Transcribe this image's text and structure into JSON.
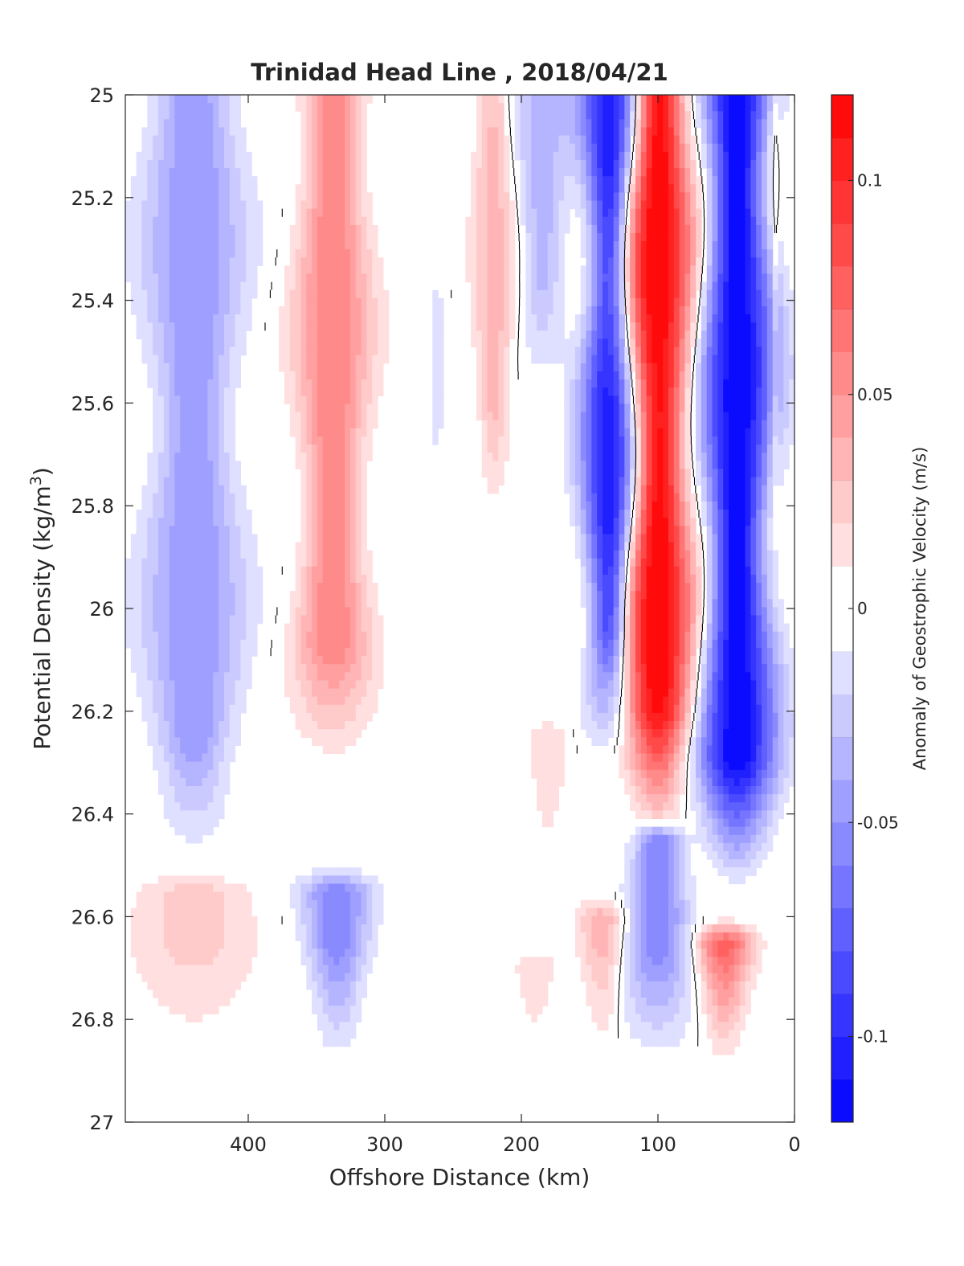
{
  "chart_data": {
    "type": "heatmap",
    "title": "Trinidad Head Line , 2018/04/21",
    "xlabel": "Offshore Distance (km)",
    "ylabel": "Potential Density (kg/m",
    "ylabel_sup": "3",
    "ylabel_close": ")",
    "colorbar_label": "Anomaly of Geostrophic Velocity (m/s)",
    "xlim": [
      490,
      0
    ],
    "ylim": [
      25,
      27
    ],
    "x_reversed": true,
    "y_reversed": true,
    "x_ticks": [
      400,
      300,
      200,
      100,
      0
    ],
    "y_ticks": [
      "25",
      "25.2",
      "25.4",
      "25.6",
      "25.8",
      "26",
      "26.2",
      "26.4",
      "26.6",
      "26.8",
      "27"
    ],
    "y_tick_values": [
      25,
      25.2,
      25.4,
      25.6,
      25.8,
      26,
      26.2,
      26.4,
      26.6,
      26.8,
      27
    ],
    "colorbar_ticks": [
      "-0.1",
      "-0.05",
      "0",
      "0.05",
      "0.1"
    ],
    "colorbar_tick_values": [
      -0.1,
      -0.05,
      0,
      0.05,
      0.1
    ],
    "clim": [
      -0.12,
      0.12
    ],
    "color_levels": 24,
    "colormap": {
      "negative": "#0000ff",
      "zero": "#ffffff",
      "positive": "#ff0000"
    },
    "contour_level_drawn": 0,
    "data_bottom_density": 26.9,
    "jets": [
      {
        "x": 440,
        "peak": -0.05,
        "y_top": 25.0,
        "y_bot": 26.5,
        "half_width_km": 32
      },
      {
        "x": 338,
        "peak": 0.06,
        "y_top": 25.0,
        "y_bot": 26.32,
        "half_width_km": 24
      },
      {
        "x": 335,
        "peak": -0.06,
        "y_top": 26.55,
        "y_bot": 26.9,
        "half_width_km": 22
      },
      {
        "x": 440,
        "peak": 0.025,
        "y_top": 26.55,
        "y_bot": 26.9,
        "half_width_km": 40
      },
      {
        "x": 262,
        "peak": -0.015,
        "y_top": 25.4,
        "y_bot": 25.85,
        "half_width_km": 6
      },
      {
        "x": 220,
        "peak": 0.035,
        "y_top": 25.0,
        "y_bot": 25.85,
        "half_width_km": 14
      },
      {
        "x": 185,
        "peak": -0.035,
        "y_top": 25.0,
        "y_bot": 25.6,
        "half_width_km": 20
      },
      {
        "x": 135,
        "peak": -0.11,
        "y_top": 25.0,
        "y_bot": 26.3,
        "half_width_km": 18
      },
      {
        "x": 180,
        "peak": 0.02,
        "y_top": 26.25,
        "y_bot": 26.55,
        "half_width_km": 12
      },
      {
        "x": 190,
        "peak": 0.025,
        "y_top": 26.7,
        "y_bot": 26.9,
        "half_width_km": 16
      },
      {
        "x": 140,
        "peak": 0.04,
        "y_top": 26.6,
        "y_bot": 26.9,
        "half_width_km": 16
      },
      {
        "x": 100,
        "peak": 0.12,
        "y_top": 25.0,
        "y_bot": 26.45,
        "half_width_km": 24
      },
      {
        "x": 100,
        "peak": -0.06,
        "y_top": 26.45,
        "y_bot": 26.9,
        "half_width_km": 22
      },
      {
        "x": 42,
        "peak": -0.12,
        "y_top": 25.0,
        "y_bot": 26.55,
        "half_width_km": 24
      },
      {
        "x": 52,
        "peak": 0.08,
        "y_top": 26.65,
        "y_bot": 26.9,
        "half_width_km": 20
      },
      {
        "x": 15,
        "peak": 0.02,
        "y_top": 25.0,
        "y_bot": 25.9,
        "half_width_km": 3
      }
    ]
  }
}
